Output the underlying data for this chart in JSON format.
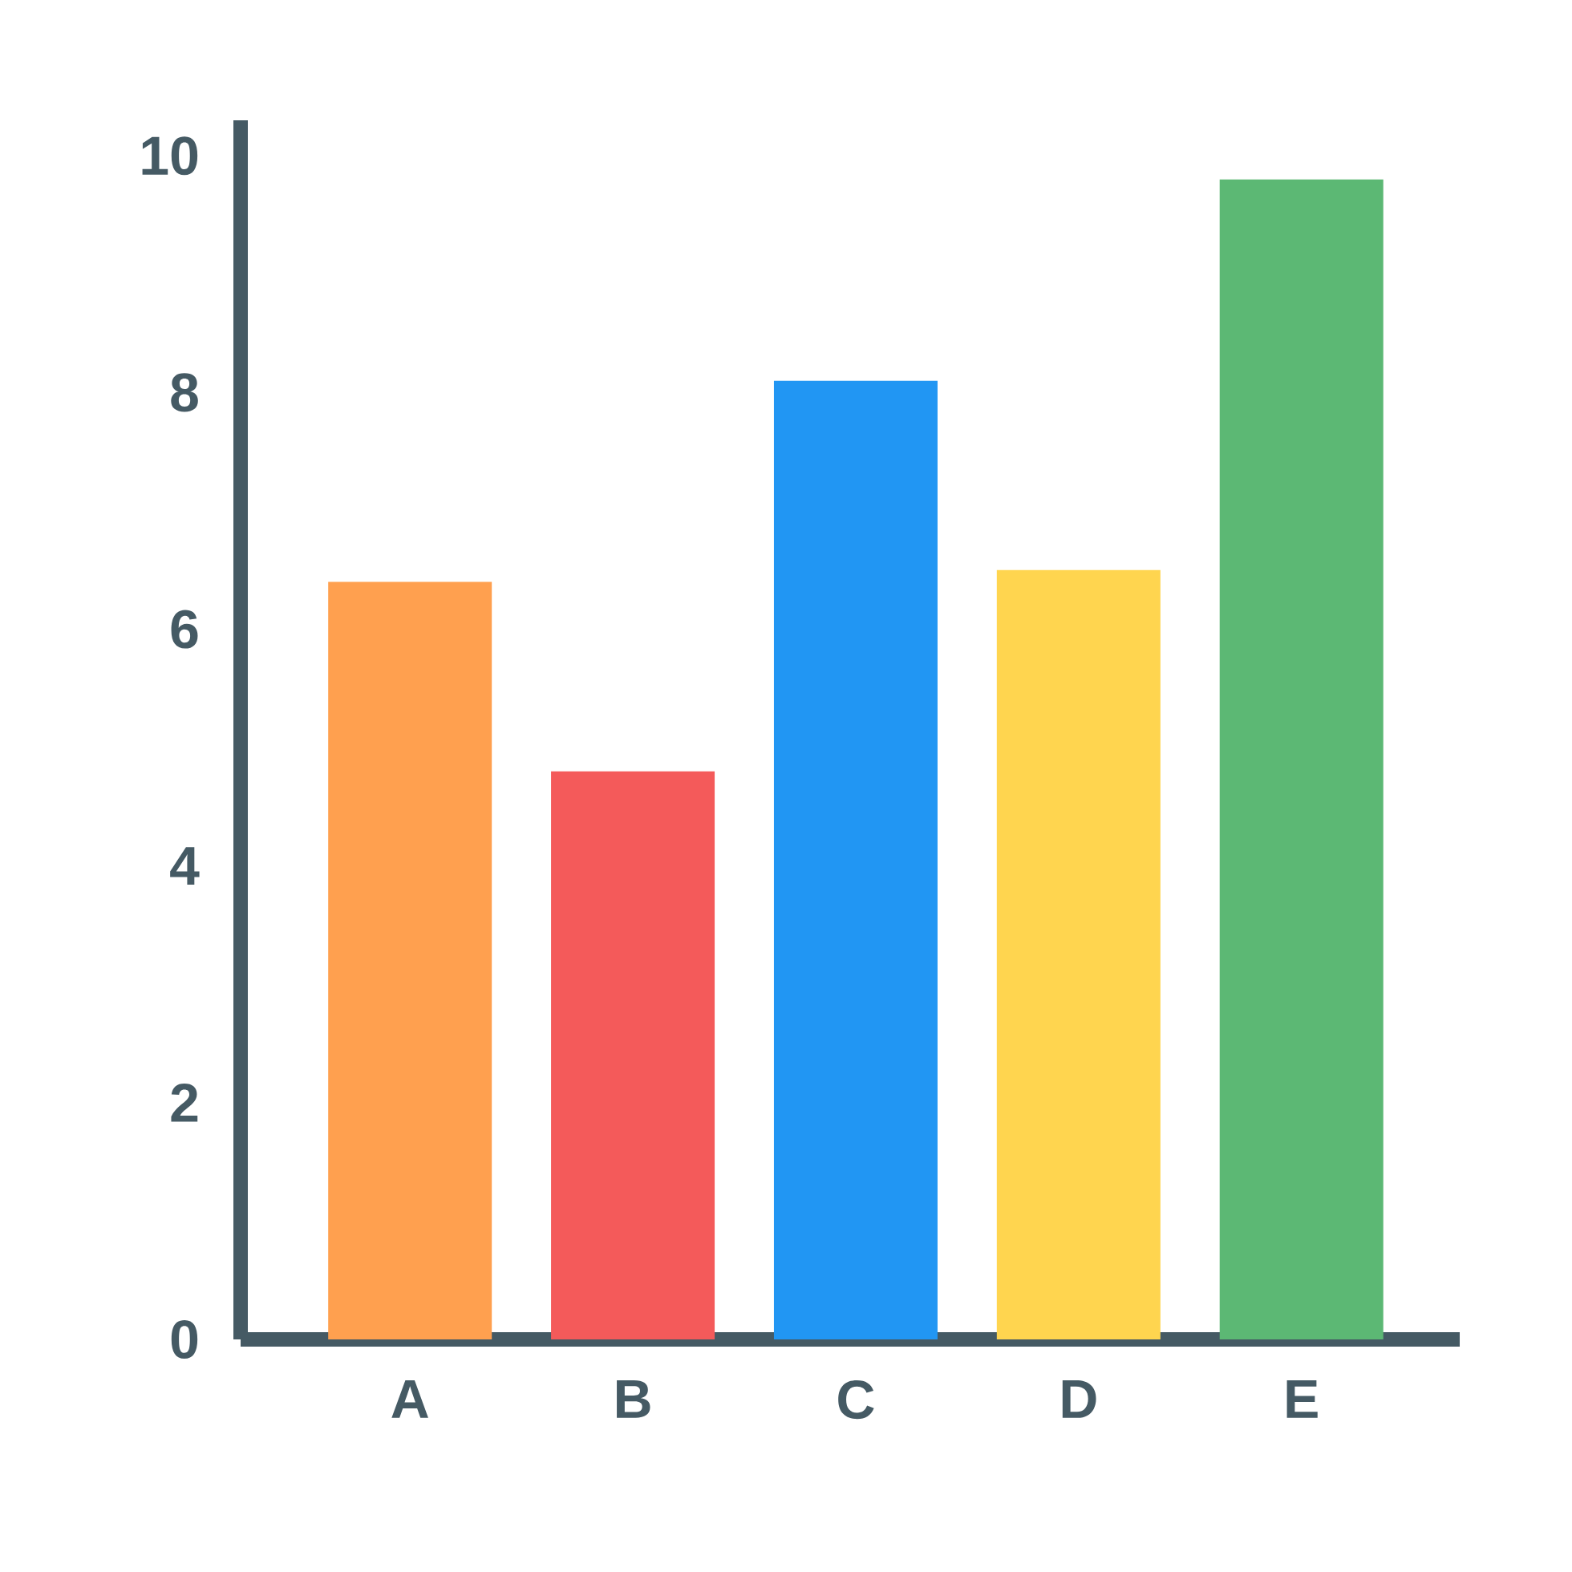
{
  "chart_data": {
    "type": "bar",
    "categories": [
      "A",
      "B",
      "C",
      "D",
      "E"
    ],
    "values": [
      6.4,
      4.8,
      8.1,
      6.5,
      9.8
    ],
    "colors": [
      "#ffa04f",
      "#f45a5a",
      "#2196f3",
      "#ffd54f",
      "#5cb874"
    ],
    "ylim": [
      0,
      10.3
    ],
    "yticks": [
      0,
      2,
      4,
      6,
      8,
      10
    ]
  }
}
